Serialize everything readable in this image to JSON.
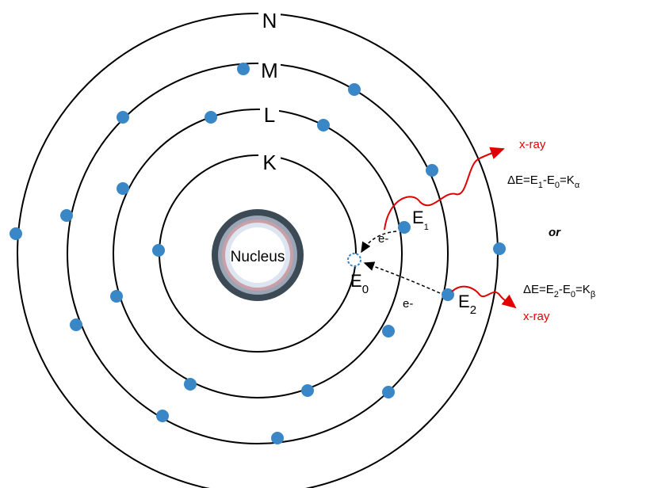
{
  "shells": [
    "N",
    "M",
    "L",
    "K"
  ],
  "nucleus": "Nucleus",
  "electron_labels": [
    "e-",
    "e-"
  ],
  "levels": [
    {
      "base": "E",
      "sub": "1"
    },
    {
      "base": "E",
      "sub": "0"
    },
    {
      "base": "E",
      "sub": "2"
    }
  ],
  "transitions": [
    {
      "photon": "x-ray",
      "equation": [
        "ΔE=E",
        "1",
        "-E",
        "0",
        "=K",
        "α"
      ]
    },
    {
      "photon": "x-ray",
      "equation": [
        "ΔE=E",
        "2",
        "-E",
        "0",
        "=K",
        "β"
      ]
    }
  ],
  "separator": "or"
}
